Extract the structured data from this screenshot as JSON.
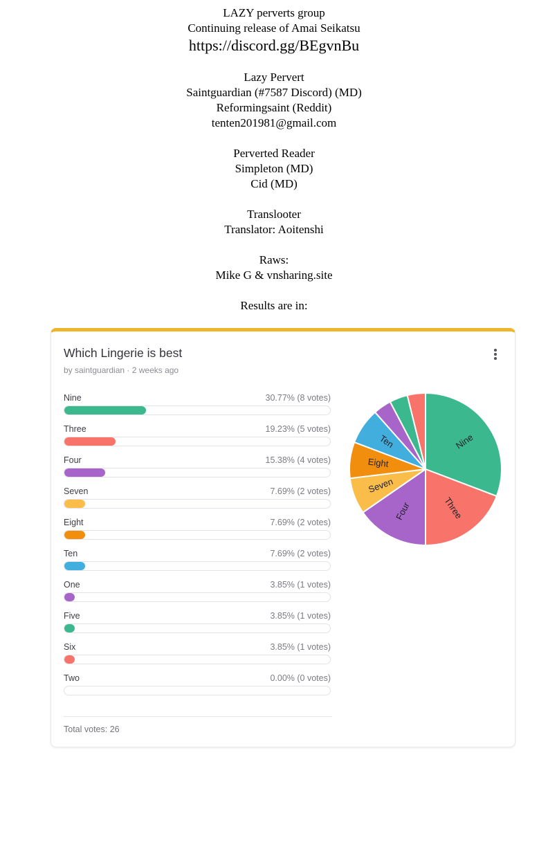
{
  "credits": {
    "title_lines": [
      "LAZY perverts group",
      "Continuing release of Amai Seikatsu"
    ],
    "url": "https://discord.gg/BEgvnBu",
    "sections": [
      {
        "lines": [
          "Lazy Pervert",
          "Saintguardian (#7587 Discord) (MD)",
          "Reformingsaint (Reddit)",
          "tenten201981@gmail.com"
        ]
      },
      {
        "lines": [
          "Perverted Reader",
          "Simpleton (MD)",
          "Cid (MD)"
        ]
      },
      {
        "lines": [
          "Translooter",
          "Translator: Aoitenshi"
        ]
      },
      {
        "lines": [
          "Raws:",
          "Mike G & vnsharing.site"
        ]
      },
      {
        "lines": [
          "Results are in:"
        ]
      }
    ]
  },
  "poll": {
    "title": "Which Lingerie is best",
    "byline": "by saintguardian · 2 weeks ago",
    "menu_icon": "kebab-vertical",
    "accent_color": "#F0B429",
    "total_votes_label": "Total votes: 26",
    "options": [
      {
        "label": "Nine",
        "percent": 30.77,
        "percent_text": "30.77% (8 votes)",
        "votes": 8,
        "color": "#3CB88F"
      },
      {
        "label": "Three",
        "percent": 19.23,
        "percent_text": "19.23% (5 votes)",
        "votes": 5,
        "color": "#F8736A"
      },
      {
        "label": "Four",
        "percent": 15.38,
        "percent_text": "15.38% (4 votes)",
        "votes": 4,
        "color": "#A765C9"
      },
      {
        "label": "Seven",
        "percent": 7.69,
        "percent_text": "7.69% (2 votes)",
        "votes": 2,
        "color": "#FABD4A"
      },
      {
        "label": "Eight",
        "percent": 7.69,
        "percent_text": "7.69% (2 votes)",
        "votes": 2,
        "color": "#F28E0D"
      },
      {
        "label": "Ten",
        "percent": 7.69,
        "percent_text": "7.69% (2 votes)",
        "votes": 2,
        "color": "#41AEDE"
      },
      {
        "label": "One",
        "percent": 3.85,
        "percent_text": "3.85% (1 votes)",
        "votes": 1,
        "color": "#A765C9"
      },
      {
        "label": "Five",
        "percent": 3.85,
        "percent_text": "3.85% (1 votes)",
        "votes": 1,
        "color": "#3CB88F"
      },
      {
        "label": "Six",
        "percent": 3.85,
        "percent_text": "3.85% (1 votes)",
        "votes": 1,
        "color": "#F8736A"
      },
      {
        "label": "Two",
        "percent": 0.0,
        "percent_text": "0.00% (0 votes)",
        "votes": 0,
        "color": null
      }
    ]
  },
  "chart_data": {
    "type": "pie",
    "title": "Which Lingerie is best",
    "categories": [
      "Nine",
      "Three",
      "Four",
      "Seven",
      "Eight",
      "Ten",
      "One",
      "Five",
      "Six",
      "Two"
    ],
    "values": [
      30.77,
      19.23,
      15.38,
      7.69,
      7.69,
      7.69,
      3.85,
      3.85,
      3.85,
      0
    ],
    "votes": [
      8,
      5,
      4,
      2,
      2,
      2,
      1,
      1,
      1,
      0
    ],
    "total_votes": 26,
    "colors": [
      "#3CB88F",
      "#F8736A",
      "#A765C9",
      "#FABD4A",
      "#F28E0D",
      "#41AEDE",
      "#A765C9",
      "#3CB88F",
      "#F8736A",
      "#cccccc"
    ],
    "start_angle_deg": 0,
    "direction": "clockwise",
    "slice_gap_color": "#ffffff",
    "slice_labels_shown": [
      "Nine",
      "Three",
      "Four",
      "Seven",
      "Eight",
      "Ten"
    ],
    "legend": "none"
  }
}
